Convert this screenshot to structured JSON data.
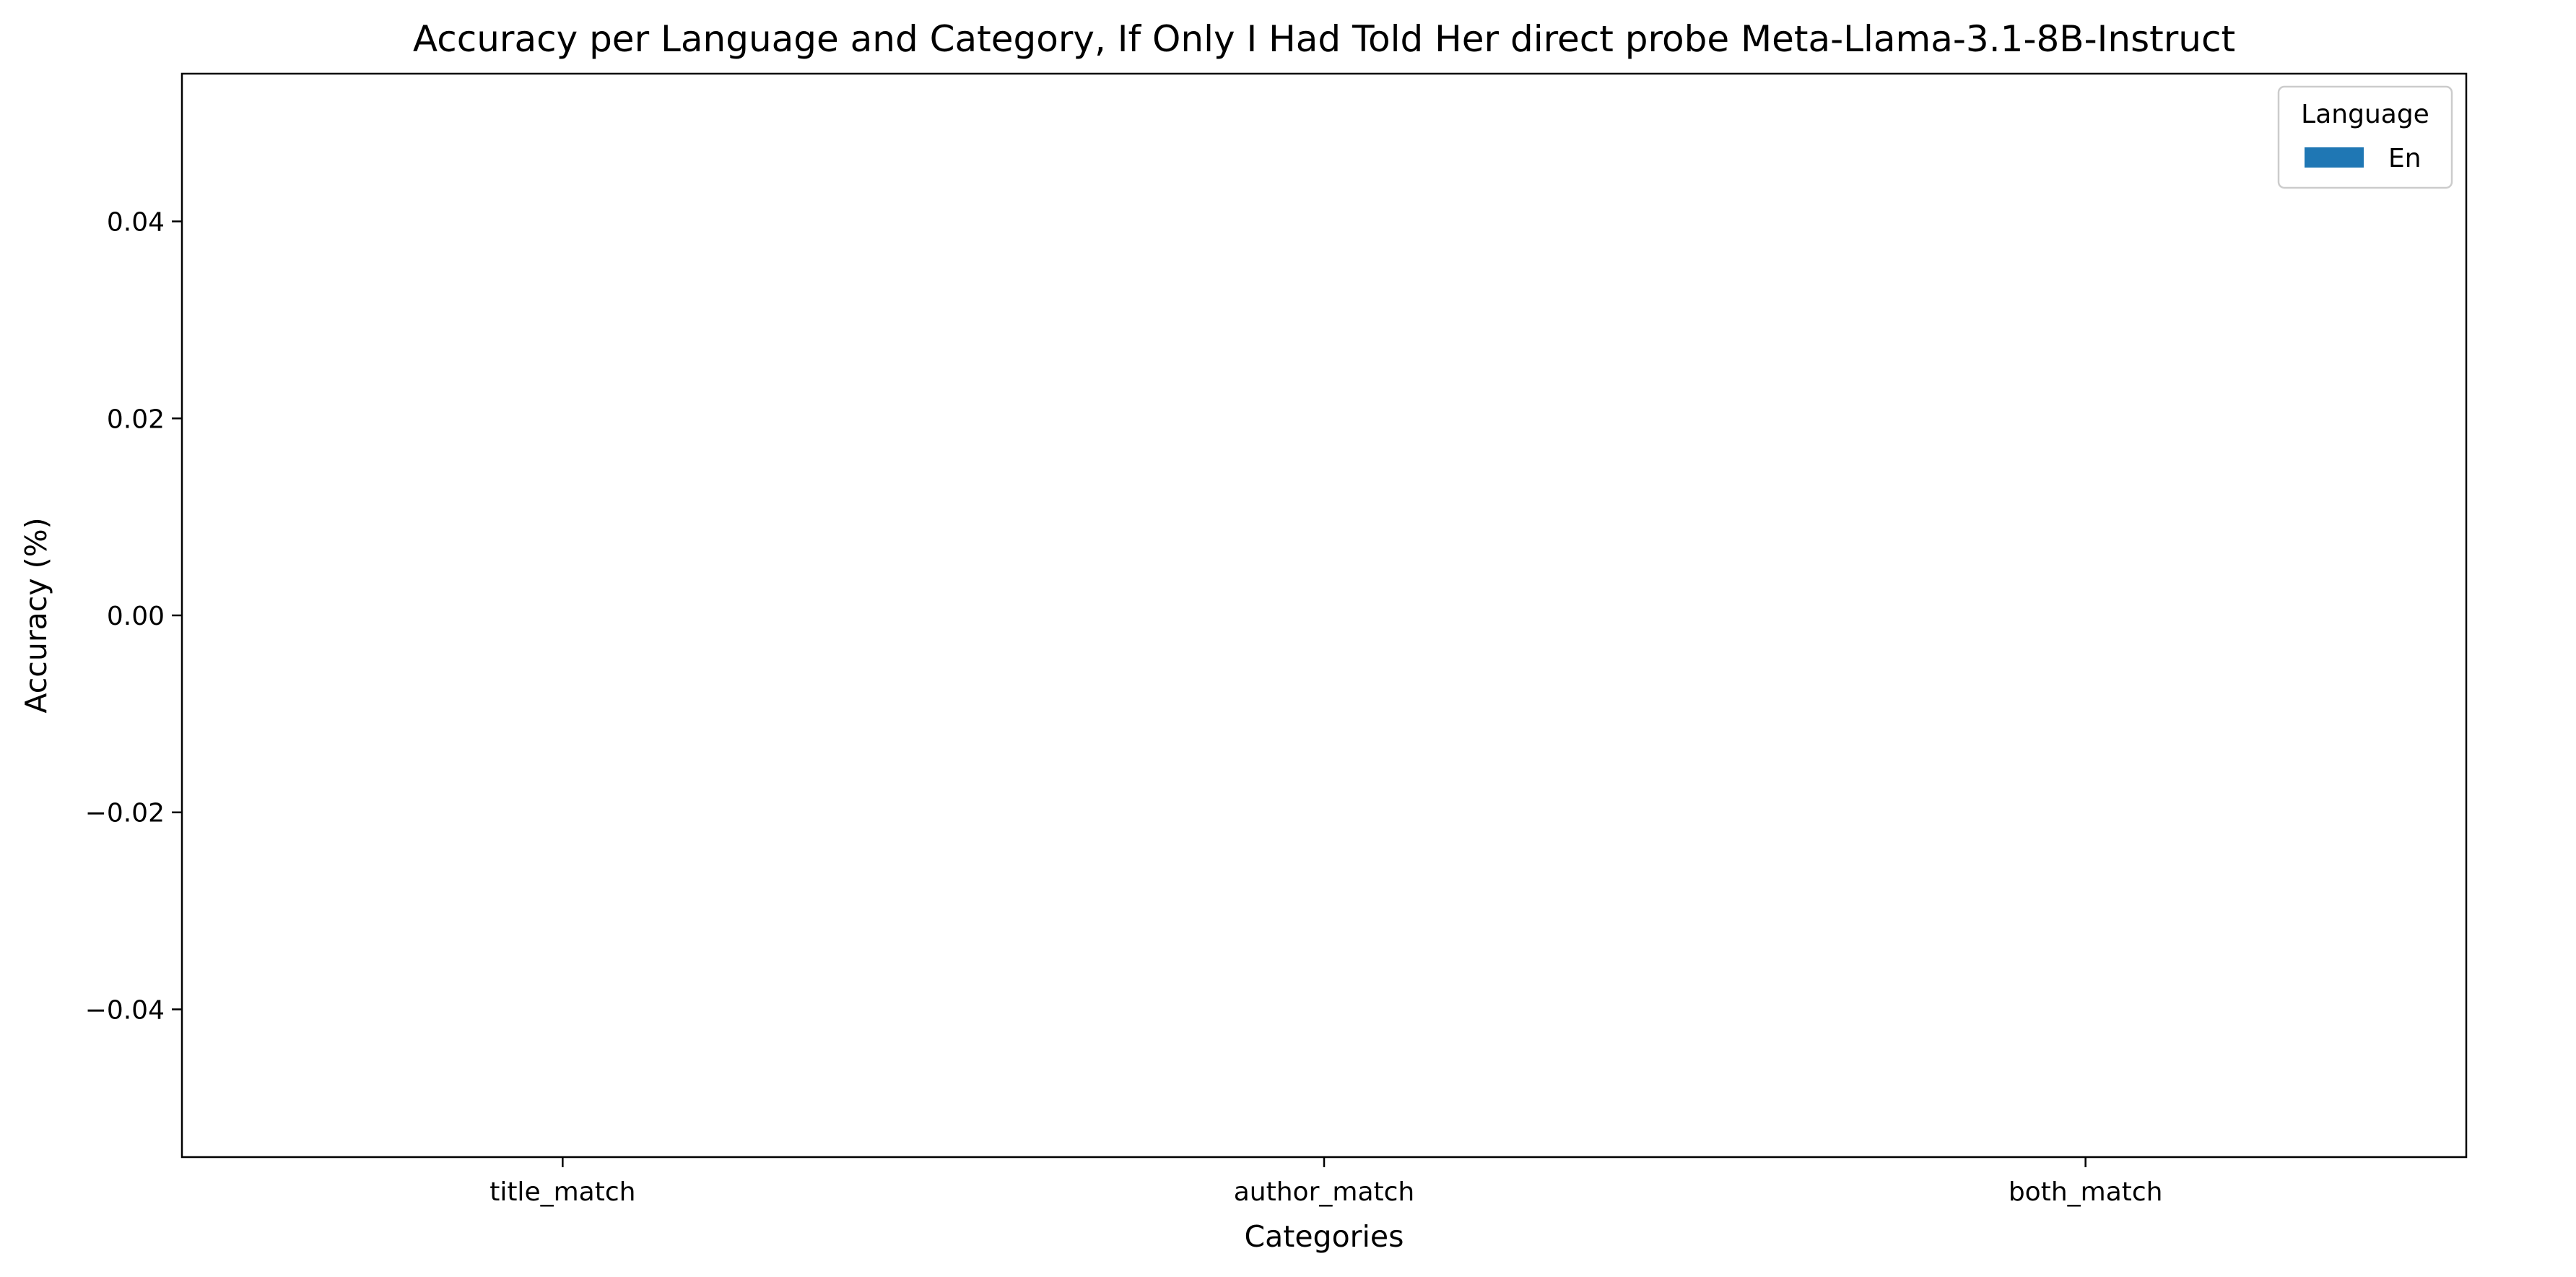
{
  "chart_data": {
    "type": "bar",
    "title": "Accuracy per Language and Category, If Only I Had Told Her direct probe Meta-Llama-3.1-8B-Instruct",
    "xlabel": "Categories",
    "ylabel": "Accuracy (%)",
    "categories": [
      "title_match",
      "author_match",
      "both_match"
    ],
    "series": [
      {
        "name": "En",
        "color": "#1f77b4",
        "values": [
          0,
          0,
          0
        ]
      }
    ],
    "ylim": [
      -0.055,
      0.055
    ],
    "yticks": [
      -0.04,
      -0.02,
      0.0,
      0.02,
      0.04
    ],
    "ytick_labels": [
      "−0.04",
      "−0.02",
      "0.00",
      "0.02",
      "0.04"
    ],
    "grid": false,
    "legend": {
      "title": "Language",
      "placement": "top-right"
    }
  }
}
